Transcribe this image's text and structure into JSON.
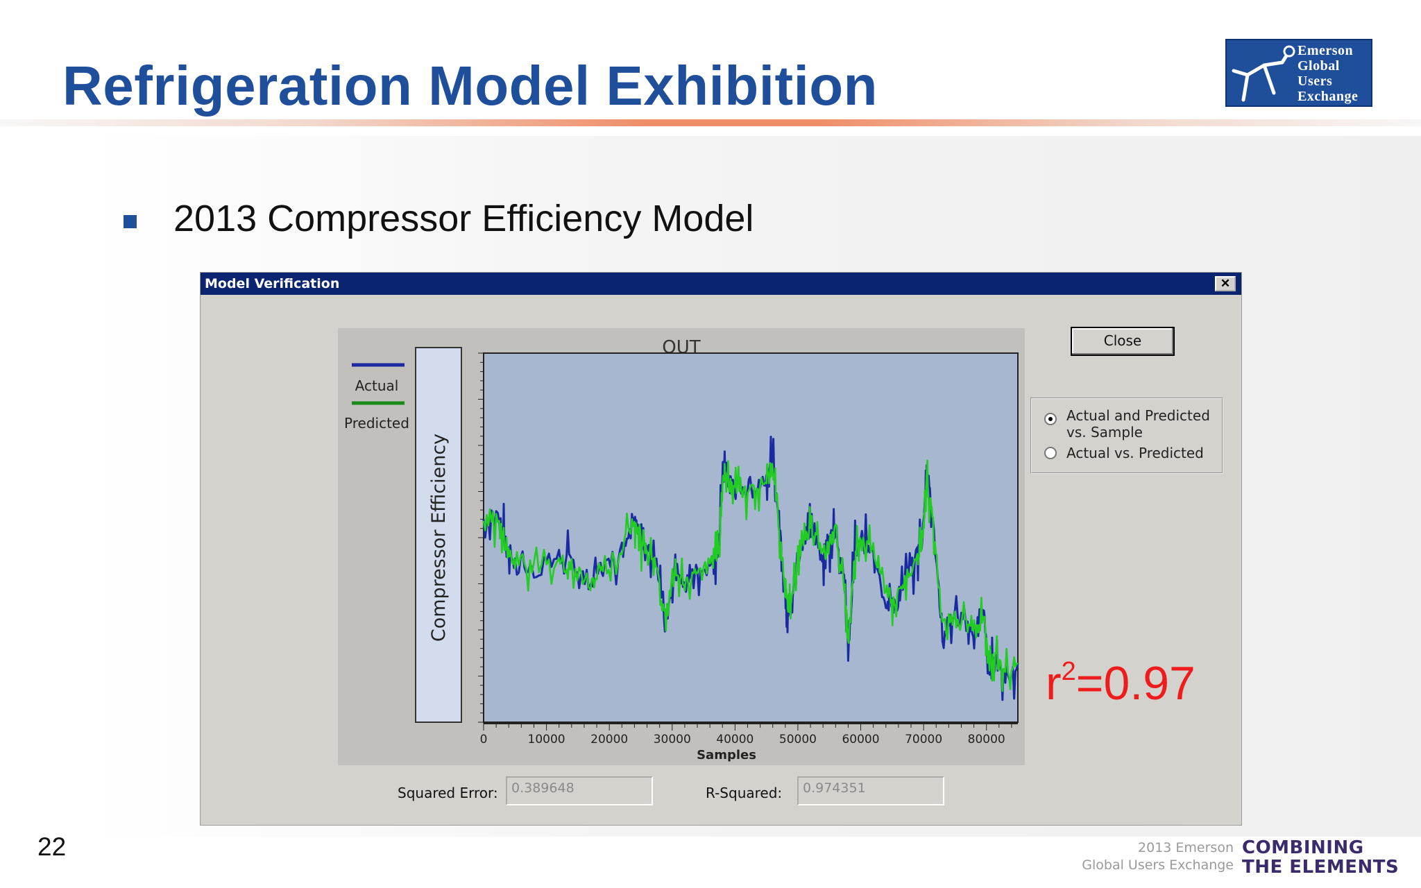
{
  "slide": {
    "title": "Refrigeration Model Exhibition",
    "bullet": "2013 Compressor Efficiency Model",
    "page_number": "22",
    "r2_prefix": "r",
    "r2_exponent": "2",
    "r2_value": "=0.97",
    "accent_color": "#1f4e9a"
  },
  "logo": {
    "lines": [
      "Emerson",
      "Global",
      "Users",
      "Exchange"
    ]
  },
  "footer": {
    "event_line1": "2013 Emerson",
    "event_line2": "Global Users Exchange",
    "tagline_line1": "COMBINING",
    "tagline_line2": "THE ELEMENTS"
  },
  "dialog": {
    "title": "Model Verification",
    "close_x": "✕",
    "close_button": "Close",
    "radio_options": [
      {
        "label": "Actual and Predicted vs. Sample",
        "selected": true
      },
      {
        "label": "Actual vs. Predicted",
        "selected": false
      }
    ],
    "squared_error_label": "Squared Error:",
    "squared_error_value": "0.389648",
    "r_squared_label": "R-Squared:",
    "r_squared_value": "0.974351"
  },
  "chart_data": {
    "type": "line",
    "title": "OUT",
    "xlabel": "Samples",
    "ylabel": "Compressor Efficiency",
    "xlim": [
      0,
      85000
    ],
    "ylim": [
      0,
      1
    ],
    "x_ticks": [
      0,
      10000,
      20000,
      30000,
      40000,
      50000,
      60000,
      70000,
      80000
    ],
    "x_tick_labels": [
      "0",
      "10000",
      "20000",
      "30000",
      "40000",
      "50000",
      "60000",
      "70000",
      "80000"
    ],
    "y_ticks_labeled": false,
    "grid": false,
    "legend_position": "left",
    "series": [
      {
        "name": "Actual",
        "color": "#1a2aa0",
        "x": [
          0,
          2500,
          3500,
          5000,
          8000,
          12000,
          14000,
          17000,
          19000,
          22000,
          24000,
          25000,
          26000,
          27500,
          29000,
          30500,
          32000,
          34000,
          36500,
          37500,
          38000,
          38500,
          39500,
          41000,
          43000,
          45000,
          46000,
          47000,
          48000,
          48500,
          49000,
          50000,
          51500,
          52500,
          54000,
          55000,
          56000,
          57500,
          58000,
          59000,
          60000,
          62000,
          64000,
          65500,
          67000,
          69000,
          70000,
          70500,
          71500,
          73000,
          75000,
          77000,
          78500,
          79500,
          80500,
          81500,
          83000,
          85000
        ],
        "y": [
          0.55,
          0.56,
          0.48,
          0.43,
          0.41,
          0.45,
          0.43,
          0.38,
          0.42,
          0.47,
          0.57,
          0.51,
          0.47,
          0.42,
          0.25,
          0.43,
          0.38,
          0.41,
          0.43,
          0.48,
          0.68,
          0.69,
          0.64,
          0.64,
          0.63,
          0.67,
          0.71,
          0.55,
          0.35,
          0.29,
          0.32,
          0.46,
          0.52,
          0.51,
          0.45,
          0.49,
          0.53,
          0.36,
          0.18,
          0.46,
          0.48,
          0.48,
          0.33,
          0.31,
          0.38,
          0.45,
          0.53,
          0.69,
          0.55,
          0.24,
          0.29,
          0.26,
          0.24,
          0.3,
          0.13,
          0.17,
          0.12,
          0.16
        ]
      },
      {
        "name": "Predicted",
        "color": "#22cc22",
        "x": [
          0,
          2500,
          3500,
          5000,
          8000,
          12000,
          14000,
          17000,
          19000,
          22000,
          24000,
          25000,
          26000,
          27500,
          29000,
          30500,
          32000,
          34000,
          36500,
          37500,
          38000,
          38500,
          39500,
          41000,
          43000,
          45000,
          46000,
          47000,
          48000,
          48500,
          49000,
          50000,
          51500,
          52500,
          54000,
          55000,
          56000,
          57500,
          58000,
          59000,
          60000,
          62000,
          64000,
          65500,
          67000,
          69000,
          70000,
          70500,
          71500,
          73000,
          75000,
          77000,
          78500,
          79500,
          80500,
          81500,
          83000,
          85000
        ],
        "y": [
          0.54,
          0.55,
          0.47,
          0.43,
          0.41,
          0.44,
          0.42,
          0.38,
          0.41,
          0.47,
          0.56,
          0.5,
          0.47,
          0.41,
          0.27,
          0.42,
          0.38,
          0.4,
          0.43,
          0.47,
          0.64,
          0.66,
          0.63,
          0.64,
          0.62,
          0.66,
          0.7,
          0.54,
          0.36,
          0.3,
          0.33,
          0.46,
          0.51,
          0.5,
          0.45,
          0.48,
          0.52,
          0.36,
          0.22,
          0.45,
          0.48,
          0.47,
          0.34,
          0.32,
          0.38,
          0.44,
          0.52,
          0.65,
          0.54,
          0.25,
          0.29,
          0.26,
          0.25,
          0.29,
          0.15,
          0.17,
          0.14,
          0.16
        ]
      }
    ]
  }
}
